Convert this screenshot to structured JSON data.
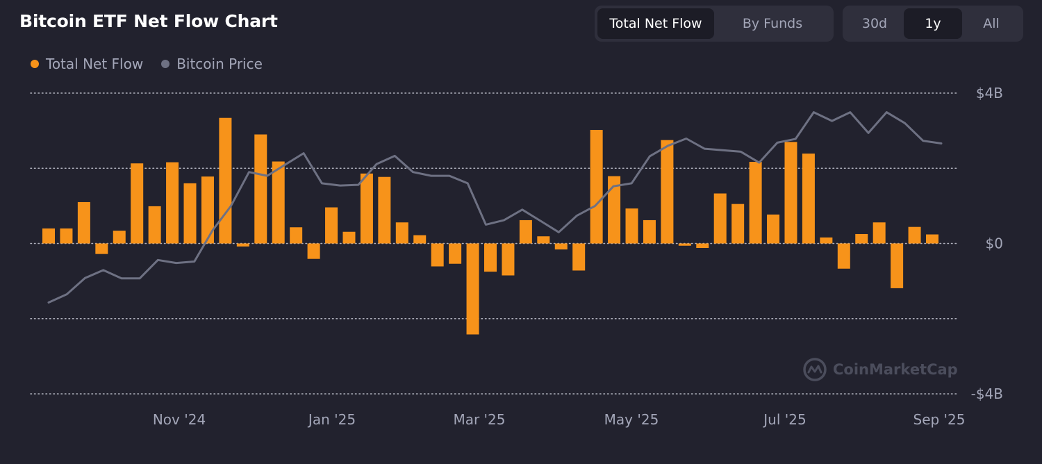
{
  "header": {
    "title": "Bitcoin ETF Net Flow Chart",
    "view_tabs": [
      {
        "label": "Total Net Flow",
        "active": true
      },
      {
        "label": "By Funds",
        "active": false
      }
    ],
    "range_tabs": [
      {
        "label": "30d",
        "active": false
      },
      {
        "label": "1y",
        "active": true
      },
      {
        "label": "All",
        "active": false
      }
    ]
  },
  "legend": [
    {
      "label": "Total Net Flow",
      "color": "#f7931a"
    },
    {
      "label": "Bitcoin Price",
      "color": "#6e7183"
    }
  ],
  "watermark": {
    "text": "CoinMarketCap",
    "icon": "coinmarketcap-logo-icon"
  },
  "colors": {
    "background": "#22222e",
    "bar": "#f7931a",
    "price_line": "#6e7183",
    "grid": "#c9cbd6",
    "axis_text": "#a3a6b8"
  },
  "chart_data": {
    "type": "bar",
    "title": "Bitcoin ETF Net Flow Chart",
    "x_tick_labels": [
      "Nov '24",
      "Jan '25",
      "Mar '25",
      "May '25",
      "Jul '25",
      "Sep '25"
    ],
    "y_tick_labels": [
      "$4B",
      "$0",
      "-$4B"
    ],
    "ylim": [
      -4,
      4
    ],
    "y_unit": "$B",
    "grid": true,
    "legend_position": "top-left",
    "series": [
      {
        "name": "Total Net Flow",
        "type": "bar",
        "values": [
          0.4,
          0.4,
          1.1,
          -0.28,
          0.34,
          2.13,
          0.99,
          2.16,
          1.6,
          1.78,
          3.34,
          -0.08,
          2.9,
          2.18,
          0.43,
          -0.41,
          0.96,
          0.31,
          1.86,
          1.77,
          0.56,
          0.22,
          -0.61,
          -0.54,
          -2.42,
          -0.75,
          -0.85,
          0.62,
          0.19,
          -0.16,
          -0.72,
          3.02,
          1.79,
          0.93,
          0.62,
          2.75,
          -0.06,
          -0.12,
          1.33,
          1.05,
          2.17,
          0.77,
          2.7,
          2.39,
          0.16,
          -0.67,
          0.25,
          0.56,
          -1.19,
          0.44,
          0.24
        ]
      },
      {
        "name": "Bitcoin Price",
        "type": "line",
        "values": [
          -1.57,
          -1.35,
          -0.92,
          -0.71,
          -0.93,
          -0.93,
          -0.44,
          -0.52,
          -0.48,
          0.35,
          0.99,
          1.9,
          1.8,
          2.1,
          2.4,
          1.6,
          1.54,
          1.56,
          2.11,
          2.33,
          1.9,
          1.8,
          1.8,
          1.6,
          0.5,
          0.62,
          0.9,
          0.6,
          0.3,
          0.74,
          1.0,
          1.52,
          1.6,
          2.32,
          2.6,
          2.79,
          2.52,
          2.48,
          2.44,
          2.15,
          2.68,
          2.78,
          3.49,
          3.26,
          3.49,
          2.94,
          3.49,
          3.2,
          2.73,
          2.66
        ]
      }
    ]
  }
}
